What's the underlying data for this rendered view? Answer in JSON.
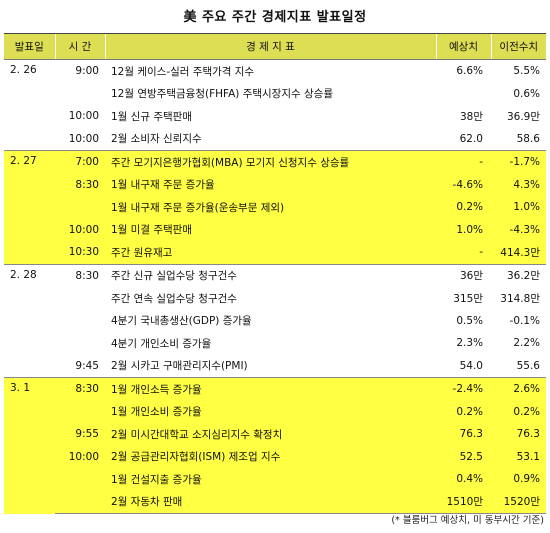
{
  "title": "美 주요 주간 경제지표 발표일정",
  "headers": {
    "date": "발표일",
    "time": "시 간",
    "indicator": "경 제 지 표",
    "forecast": "예상치",
    "previous": "이전수치"
  },
  "groups": [
    {
      "date": "2. 26",
      "rows": [
        {
          "time": "9:00",
          "indicator": "12월 케이스-실러 주택가격 지수",
          "forecast": "6.6%",
          "previous": "5.5%"
        },
        {
          "time": "",
          "indicator": "12월 연방주택금융청(FHFA) 주택시장지수 상승률",
          "forecast": "",
          "previous": "0.6%"
        },
        {
          "time": "10:00",
          "indicator": "1월 신규 주택판매",
          "forecast": "38만",
          "previous": "36.9만"
        },
        {
          "time": "10:00",
          "indicator": "2월 소비자 신뢰지수",
          "forecast": "62.0",
          "previous": "58.6"
        }
      ]
    },
    {
      "date": "2. 27",
      "rows": [
        {
          "time": "7:00",
          "indicator": "주간 모기지은행가협회(MBA) 모기지 신청지수 상승률",
          "forecast": "-",
          "previous": "-1.7%"
        },
        {
          "time": "8:30",
          "indicator": "1월 내구재 주문 증가율",
          "forecast": "-4.6%",
          "previous": "4.3%"
        },
        {
          "time": "",
          "indicator": "1월 내구재 주문 증가율(운송부문 제외)",
          "forecast": "0.2%",
          "previous": "1.0%"
        },
        {
          "time": "10:00",
          "indicator": "1월 미결 주택판매",
          "forecast": "1.0%",
          "previous": "-4.3%"
        },
        {
          "time": "10:30",
          "indicator": "주간 원유재고",
          "forecast": "-",
          "previous": "414.3만"
        }
      ]
    },
    {
      "date": "2. 28",
      "rows": [
        {
          "time": "8:30",
          "indicator": "주간 신규 실업수당 청구건수",
          "forecast": "36만",
          "previous": "36.2만"
        },
        {
          "time": "",
          "indicator": "주간 연속 실업수당 청구건수",
          "forecast": "315만",
          "previous": "314.8만"
        },
        {
          "time": "",
          "indicator": "4분기 국내총생산(GDP) 증가율",
          "forecast": "0.5%",
          "previous": "-0.1%"
        },
        {
          "time": "",
          "indicator": "4분기 개인소비 증가율",
          "forecast": "2.3%",
          "previous": "2.2%"
        },
        {
          "time": "9:45",
          "indicator": "2월 시카고 구매관리지수(PMI)",
          "forecast": "54.0",
          "previous": "55.6"
        }
      ]
    },
    {
      "date": "3. 1",
      "rows": [
        {
          "time": "8:30",
          "indicator": "1월 개인소득 증가율",
          "forecast": "-2.4%",
          "previous": "2.6%"
        },
        {
          "time": "",
          "indicator": "1월 개인소비 증가율",
          "forecast": "0.2%",
          "previous": "0.2%"
        },
        {
          "time": "9:55",
          "indicator": "2월 미시간대학교 소지심리지수 확정치",
          "forecast": "76.3",
          "previous": "76.3"
        },
        {
          "time": "10:00",
          "indicator": "2월 공급관리자협회(ISM) 제조업 지수",
          "forecast": "52.5",
          "previous": "53.1"
        },
        {
          "time": "",
          "indicator": "1월 건설지출 증가율",
          "forecast": "0.4%",
          "previous": "0.9%"
        },
        {
          "time": "",
          "indicator": "2월 자동차 판매",
          "forecast": "1510만",
          "previous": "1520만"
        }
      ]
    }
  ],
  "footnote": "(* 블룸버그 예상치, 미 동부시간 기준)",
  "colors": {
    "header": "#dede55",
    "highlight": "#ffff44"
  }
}
